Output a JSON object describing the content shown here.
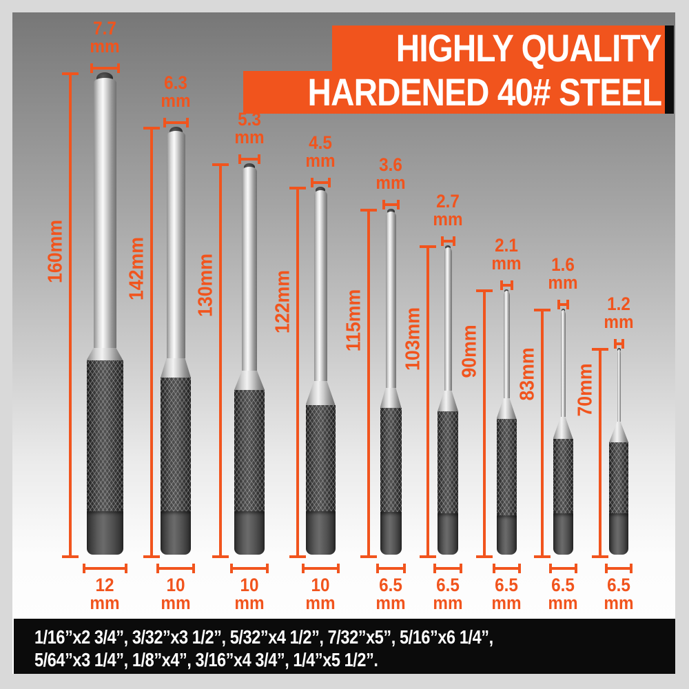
{
  "banner": {
    "line1": "HIGHLY QUALITY",
    "line2": "HARDENED 40# STEEL"
  },
  "footer": {
    "line1": "1/16”x2 3/4”, 3/32”x3 1/2”, 5/32”x4 1/2”, 7/32”x5”, 5/16”x6 1/4”,",
    "line2": "5/64”x3 1/4”, 1/8”x4”, 3/16”x4 3/4”, 1/4”x5 1/2”."
  },
  "colors": {
    "accent": "#F1541D",
    "banner_bg": "#F1541D",
    "banner_text": "#FFFFFF",
    "footer_bg": "#0B0B0B",
    "footer_text": "#FFFFFF"
  },
  "unit": "mm",
  "punches": [
    {
      "tip_diameter": "7.7",
      "unit": "mm",
      "length": "160mm",
      "body_diameter": "12"
    },
    {
      "tip_diameter": "6.3",
      "unit": "mm",
      "length": "142mm",
      "body_diameter": "10"
    },
    {
      "tip_diameter": "5.3",
      "unit": "mm",
      "length": "130mm",
      "body_diameter": "10"
    },
    {
      "tip_diameter": "4.5",
      "unit": "mm",
      "length": "122mm",
      "body_diameter": "10"
    },
    {
      "tip_diameter": "3.6",
      "unit": "mm",
      "length": "115mm",
      "body_diameter": "6.5"
    },
    {
      "tip_diameter": "2.7",
      "unit": "mm",
      "length": "103mm",
      "body_diameter": "6.5"
    },
    {
      "tip_diameter": "2.1",
      "unit": "mm",
      "length": "90mm",
      "body_diameter": "6.5"
    },
    {
      "tip_diameter": "1.6",
      "unit": "mm",
      "length": "83mm",
      "body_diameter": "6.5"
    },
    {
      "tip_diameter": "1.2",
      "unit": "mm",
      "length": "70mm",
      "body_diameter": "6.5"
    }
  ]
}
